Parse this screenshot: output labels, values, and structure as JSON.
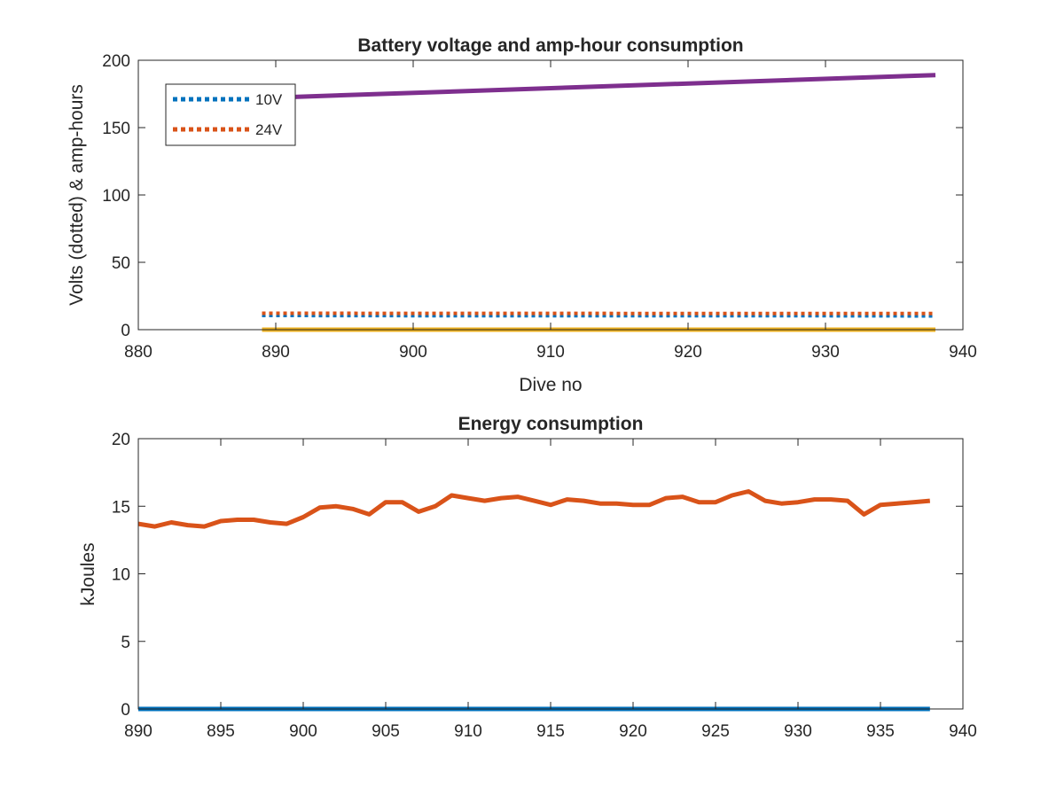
{
  "chart_data": [
    {
      "type": "line",
      "title": "Battery voltage and amp-hour consumption",
      "xlabel": "Dive no",
      "ylabel": "Volts (dotted) & amp-hours",
      "xlim": [
        880,
        940
      ],
      "ylim": [
        0,
        200
      ],
      "xticks": [
        880,
        890,
        900,
        910,
        920,
        930,
        940
      ],
      "yticks": [
        0,
        50,
        100,
        150,
        200
      ],
      "grid": false,
      "legend": {
        "placement": "top-left",
        "entries": [
          "10V",
          "24V"
        ]
      },
      "series": [
        {
          "name": "10V",
          "style": "dotted",
          "color": "#0072BD",
          "x": [
            889,
            900,
            910,
            920,
            930,
            938
          ],
          "y": [
            10.5,
            10.4,
            10.4,
            10.3,
            10.3,
            10.2
          ]
        },
        {
          "name": "24V",
          "style": "dotted",
          "color": "#D95319",
          "x": [
            889,
            900,
            910,
            920,
            930,
            938
          ],
          "y": [
            12.2,
            12.1,
            12.1,
            12.0,
            12.0,
            12.0
          ]
        },
        {
          "style": "solid",
          "color": "#7E2F8E",
          "x": [
            889,
            938
          ],
          "y": [
            172,
            189
          ]
        },
        {
          "style": "solid",
          "color": "#EDB120",
          "x": [
            889,
            938
          ],
          "y": [
            0,
            0
          ]
        }
      ]
    },
    {
      "type": "line",
      "title": "Energy consumption",
      "xlabel": "",
      "ylabel": "kJoules",
      "xlim": [
        890,
        940
      ],
      "ylim": [
        0,
        20
      ],
      "xticks": [
        890,
        895,
        900,
        905,
        910,
        915,
        920,
        925,
        930,
        935,
        940
      ],
      "yticks": [
        0,
        5,
        10,
        15,
        20
      ],
      "grid": false,
      "series": [
        {
          "style": "solid",
          "color": "#D95319",
          "x": [
            890,
            891,
            892,
            893,
            894,
            895,
            896,
            897,
            898,
            899,
            900,
            901,
            902,
            903,
            904,
            905,
            906,
            907,
            908,
            909,
            910,
            911,
            912,
            913,
            914,
            915,
            916,
            917,
            918,
            919,
            920,
            921,
            922,
            923,
            924,
            925,
            926,
            927,
            928,
            929,
            930,
            931,
            932,
            933,
            934,
            935,
            936,
            937,
            938
          ],
          "y": [
            13.7,
            13.5,
            13.8,
            13.6,
            13.5,
            13.9,
            14.0,
            14.0,
            13.8,
            13.7,
            14.2,
            14.9,
            15.0,
            14.8,
            14.4,
            15.3,
            15.3,
            14.6,
            15.0,
            15.8,
            15.6,
            15.4,
            15.6,
            15.7,
            15.4,
            15.1,
            15.5,
            15.4,
            15.2,
            15.2,
            15.1,
            15.1,
            15.6,
            15.7,
            15.3,
            15.3,
            15.8,
            16.1,
            15.4,
            15.2,
            15.3,
            15.5,
            15.5,
            15.4,
            14.4,
            15.1,
            15.2,
            15.3,
            15.4
          ]
        },
        {
          "style": "solid",
          "color": "#0072BD",
          "x": [
            890,
            938
          ],
          "y": [
            0,
            0
          ]
        }
      ]
    }
  ]
}
